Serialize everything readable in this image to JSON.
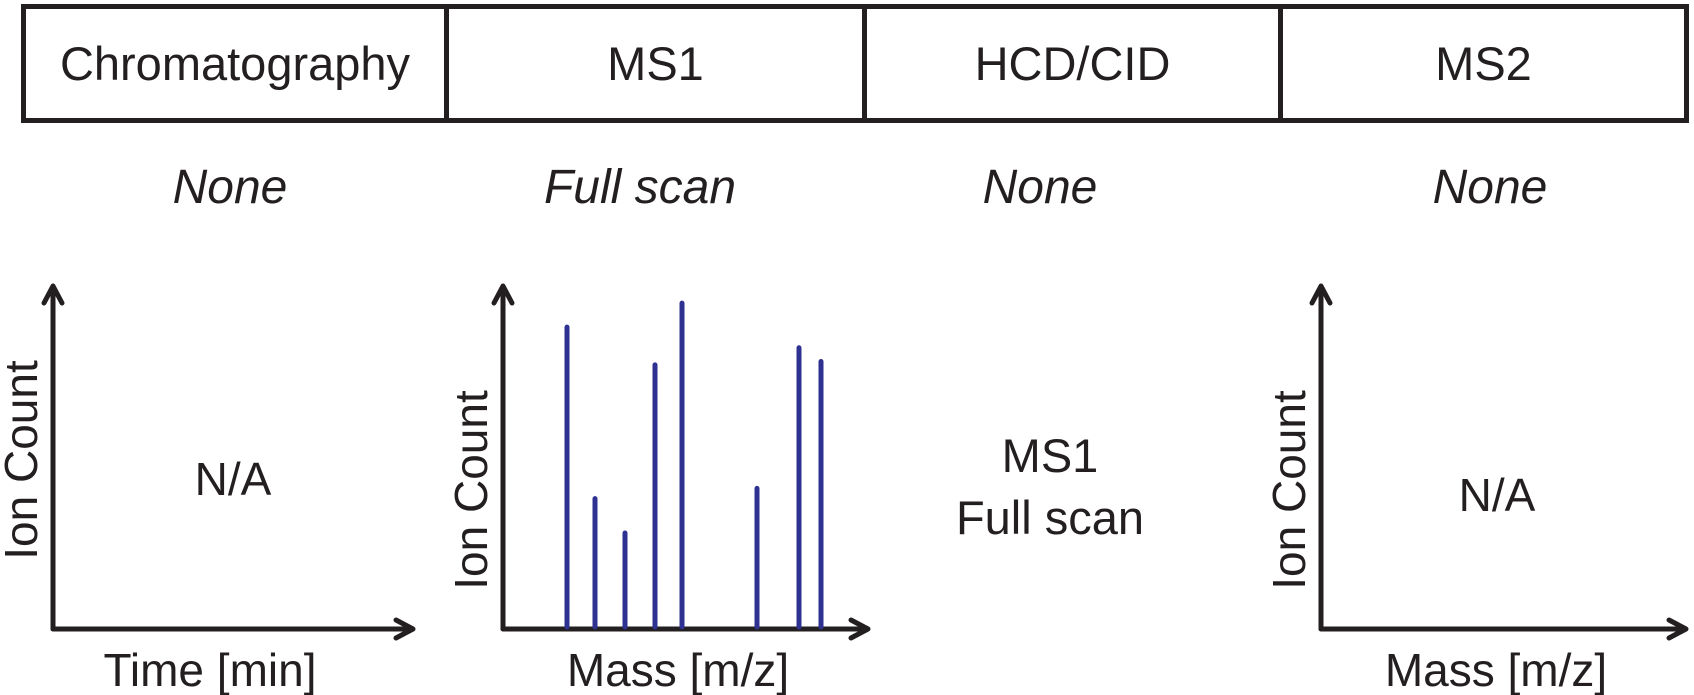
{
  "steps": [
    {
      "label": "Chromatography",
      "mode": "None"
    },
    {
      "label": "MS1",
      "mode": "Full scan"
    },
    {
      "label": "HCD/CID",
      "mode": "None"
    },
    {
      "label": "MS2",
      "mode": "None"
    }
  ],
  "panels": {
    "chromatography": {
      "ylabel": "Ion Count",
      "xlabel": "Time [min]",
      "note": "N/A"
    },
    "ms1": {
      "ylabel": "Ion Count",
      "xlabel": "Mass [m/z]"
    },
    "hcd": {
      "line1": "MS1",
      "line2": "Full scan"
    },
    "ms2": {
      "ylabel": "Ion Count",
      "xlabel": "Mass [m/z]",
      "note": "N/A"
    }
  },
  "colors": {
    "axis": "#231f20",
    "peaks": "#2e3192"
  },
  "chart_data": {
    "type": "bar",
    "xlabel": "Mass [m/z]",
    "ylabel": "Ion Count",
    "x": [
      1,
      2,
      3,
      4,
      5,
      6,
      7,
      8
    ],
    "values": [
      0.88,
      0.38,
      0.28,
      0.77,
      0.95,
      0.41,
      0.82,
      0.78
    ]
  }
}
